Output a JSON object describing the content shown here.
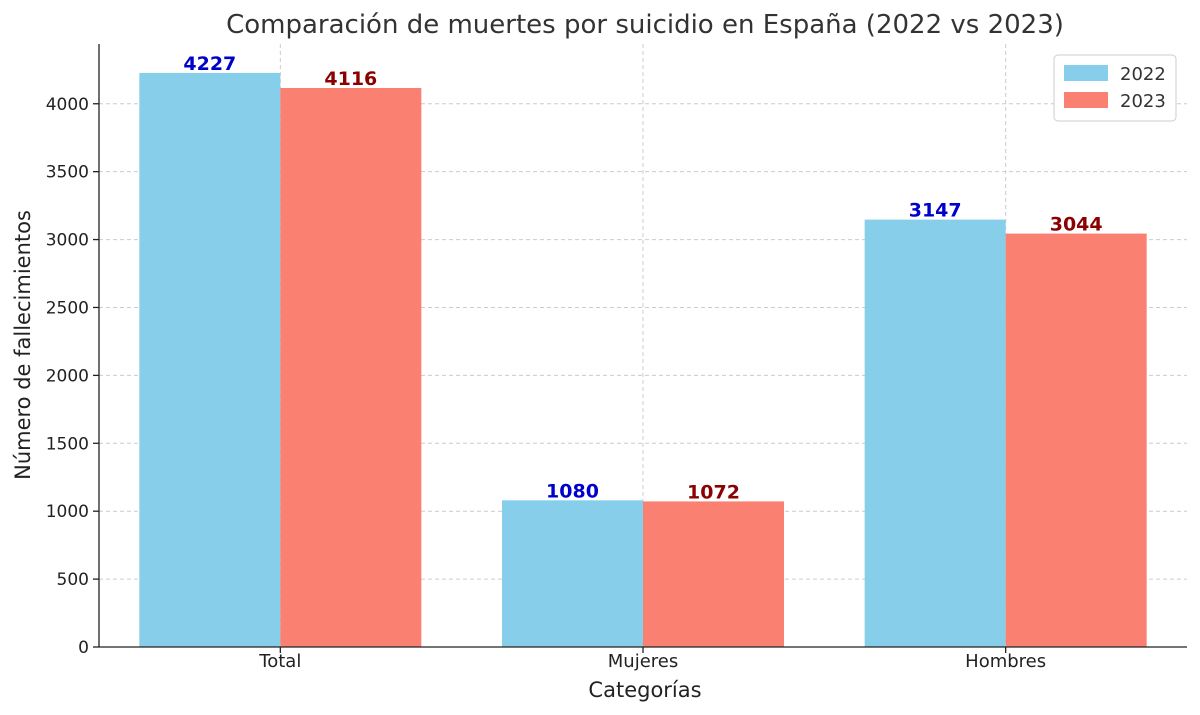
{
  "chart_data": {
    "type": "bar",
    "title": "Comparación de muertes por suicidio en España (2022 vs 2023)",
    "xlabel": "Categorías",
    "ylabel": "Número de fallecimientos",
    "categories": [
      "Total",
      "Mujeres",
      "Hombres"
    ],
    "series": [
      {
        "name": "2022",
        "values": [
          4227,
          1080,
          3147
        ],
        "color": "#87ceeb",
        "label_color": "#0000cc"
      },
      {
        "name": "2023",
        "values": [
          4116,
          1072,
          3044
        ],
        "color": "#fa8072",
        "label_color": "#8b0000"
      }
    ],
    "ylim": [
      0,
      4440
    ],
    "yticks": [
      0,
      500,
      1000,
      1500,
      2000,
      2500,
      3000,
      3500,
      4000
    ],
    "grid": true,
    "legend_position": "top-right"
  }
}
